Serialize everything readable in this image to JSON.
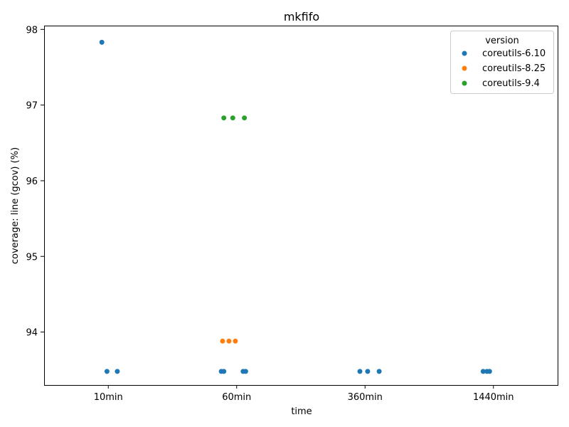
{
  "chart_data": {
    "type": "scatter",
    "title": "mkfifo",
    "xlabel": "time",
    "ylabel": "coverage: line (gcov) (%)",
    "categories": [
      "10min",
      "60min",
      "360min",
      "1440min"
    ],
    "yticks": [
      94,
      95,
      96,
      97,
      98
    ],
    "ylim": [
      93.3,
      98.05
    ],
    "grid": false,
    "legend": {
      "title": "version",
      "placement": "top-right"
    },
    "series": [
      {
        "name": "coreutils-6.10",
        "color": "#1f77b4",
        "points": [
          {
            "x": "10min",
            "jitter": -0.05,
            "y": 97.83
          },
          {
            "x": "10min",
            "jitter": -0.01,
            "y": 93.48
          },
          {
            "x": "10min",
            "jitter": 0.07,
            "y": 93.48
          },
          {
            "x": "60min",
            "jitter": -0.12,
            "y": 93.48
          },
          {
            "x": "60min",
            "jitter": -0.1,
            "y": 93.48
          },
          {
            "x": "60min",
            "jitter": 0.05,
            "y": 93.48
          },
          {
            "x": "60min",
            "jitter": 0.07,
            "y": 93.48
          },
          {
            "x": "360min",
            "jitter": -0.04,
            "y": 93.48
          },
          {
            "x": "360min",
            "jitter": 0.02,
            "y": 93.48
          },
          {
            "x": "360min",
            "jitter": 0.11,
            "y": 93.48
          },
          {
            "x": "1440min",
            "jitter": -0.08,
            "y": 93.48
          },
          {
            "x": "1440min",
            "jitter": -0.05,
            "y": 93.48
          },
          {
            "x": "1440min",
            "jitter": -0.03,
            "y": 93.48
          }
        ]
      },
      {
        "name": "coreutils-8.25",
        "color": "#ff7f0e",
        "points": [
          {
            "x": "60min",
            "jitter": -0.11,
            "y": 93.88
          },
          {
            "x": "60min",
            "jitter": -0.06,
            "y": 93.88
          },
          {
            "x": "60min",
            "jitter": -0.01,
            "y": 93.88
          }
        ]
      },
      {
        "name": "coreutils-9.4",
        "color": "#2ca02c",
        "points": [
          {
            "x": "60min",
            "jitter": -0.1,
            "y": 96.83
          },
          {
            "x": "60min",
            "jitter": -0.03,
            "y": 96.83
          },
          {
            "x": "60min",
            "jitter": 0.06,
            "y": 96.83
          }
        ]
      }
    ]
  }
}
